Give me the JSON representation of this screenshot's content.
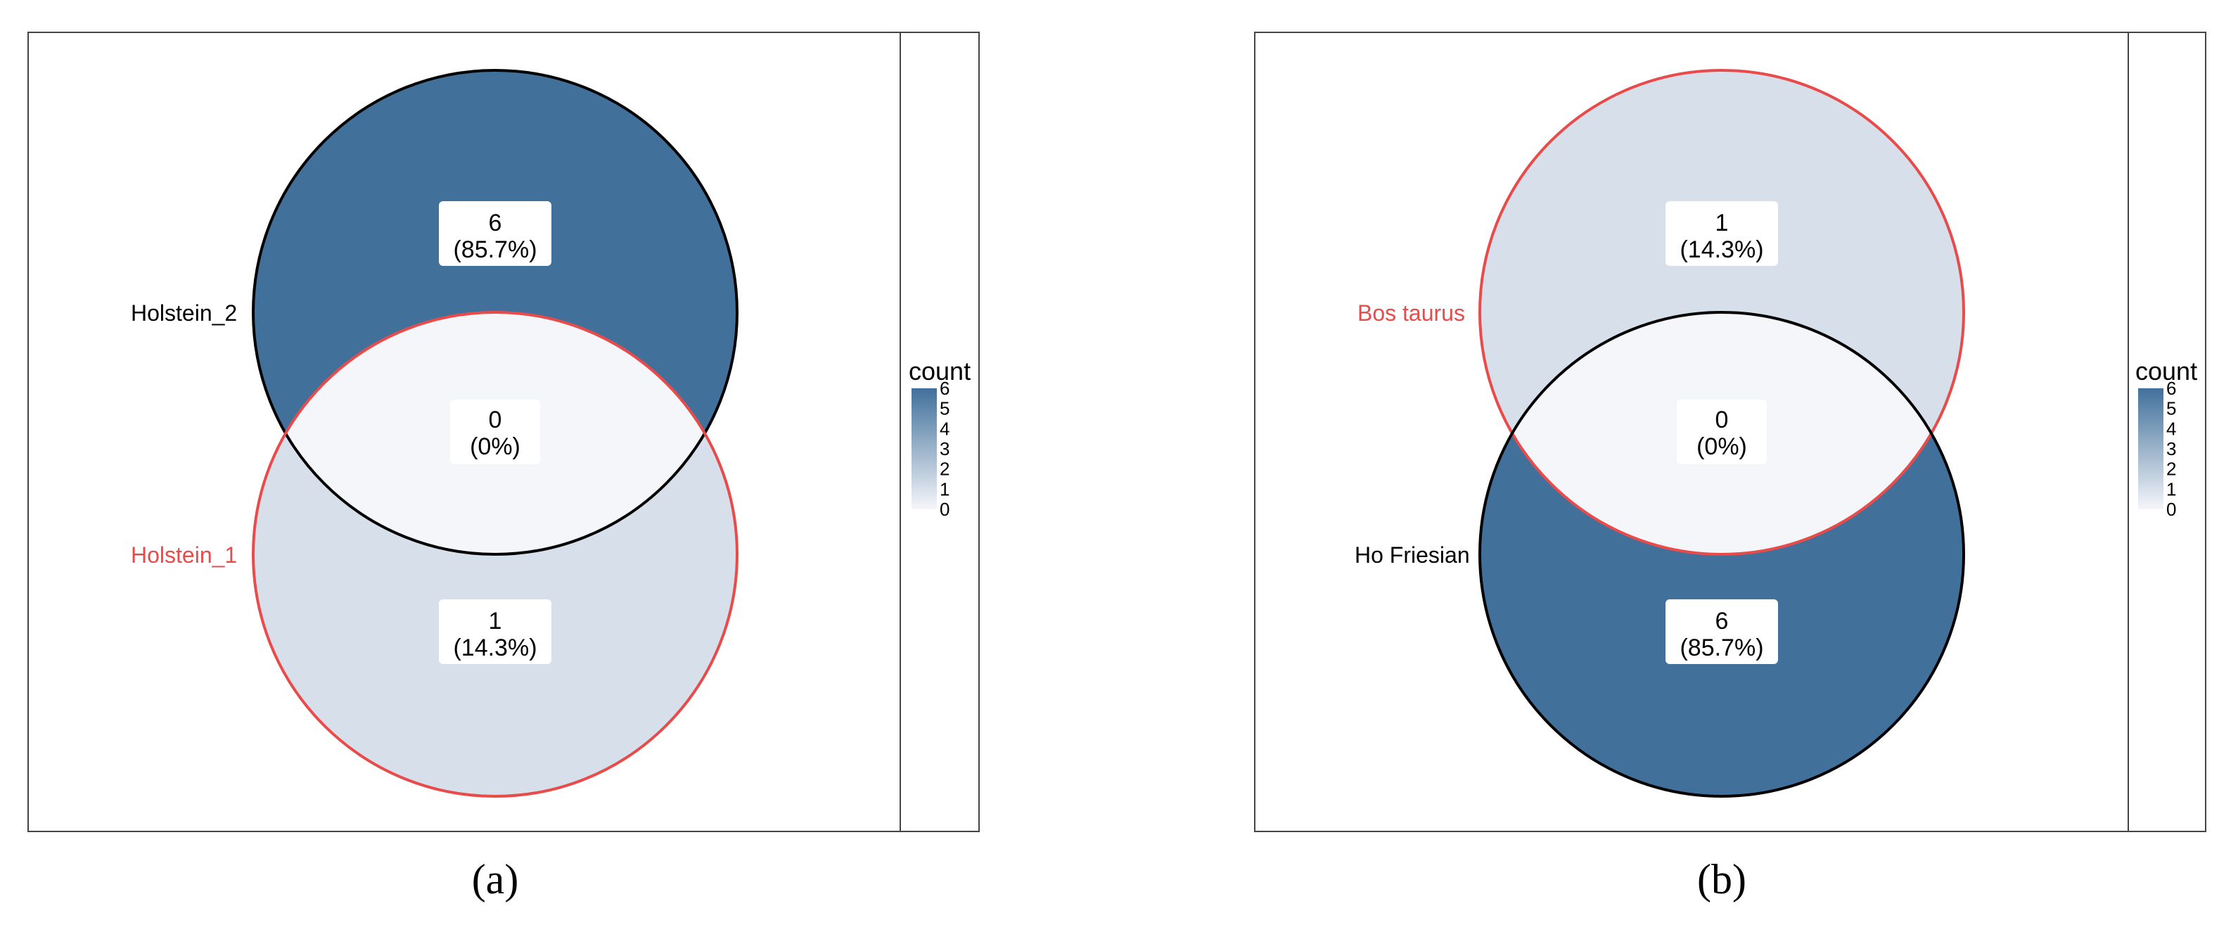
{
  "colors": {
    "high": "#41709B",
    "low": "#F5F6FA",
    "set_red": "#E94B4B",
    "set_black": "#000000",
    "frame": "#333333",
    "label_box": "#ffffff"
  },
  "chart_data": [
    {
      "type": "venn",
      "panel_label": "(a)",
      "sets": [
        {
          "name": "Holstein_2",
          "color": "black",
          "position": "top"
        },
        {
          "name": "Holstein_1",
          "color": "red",
          "position": "bottom"
        }
      ],
      "regions": [
        {
          "sets": [
            "Holstein_2"
          ],
          "count": "6",
          "percent": "(85.7%)",
          "value": 6
        },
        {
          "sets": [
            "Holstein_2",
            "Holstein_1"
          ],
          "count": "0",
          "percent": "(0%)",
          "value": 0
        },
        {
          "sets": [
            "Holstein_1"
          ],
          "count": "1",
          "percent": "(14.3%)",
          "value": 1
        }
      ],
      "legend": {
        "title": "count",
        "ticks": [
          "6",
          "5",
          "4",
          "3",
          "2",
          "1",
          "0"
        ],
        "range": [
          0,
          6
        ],
        "placement": "right"
      }
    },
    {
      "type": "venn",
      "panel_label": "(b)",
      "sets": [
        {
          "name": "Bos taurus",
          "color": "red",
          "position": "top"
        },
        {
          "name": "Ho Friesian",
          "color": "black",
          "position": "bottom"
        }
      ],
      "regions": [
        {
          "sets": [
            "Bos taurus"
          ],
          "count": "1",
          "percent": "(14.3%)",
          "value": 1
        },
        {
          "sets": [
            "Bos taurus",
            "Ho Friesian"
          ],
          "count": "0",
          "percent": "(0%)",
          "value": 0
        },
        {
          "sets": [
            "Ho Friesian"
          ],
          "count": "6",
          "percent": "(85.7%)",
          "value": 6
        }
      ],
      "legend": {
        "title": "count",
        "ticks": [
          "6",
          "5",
          "4",
          "3",
          "2",
          "1",
          "0"
        ],
        "range": [
          0,
          6
        ],
        "placement": "right"
      }
    }
  ]
}
